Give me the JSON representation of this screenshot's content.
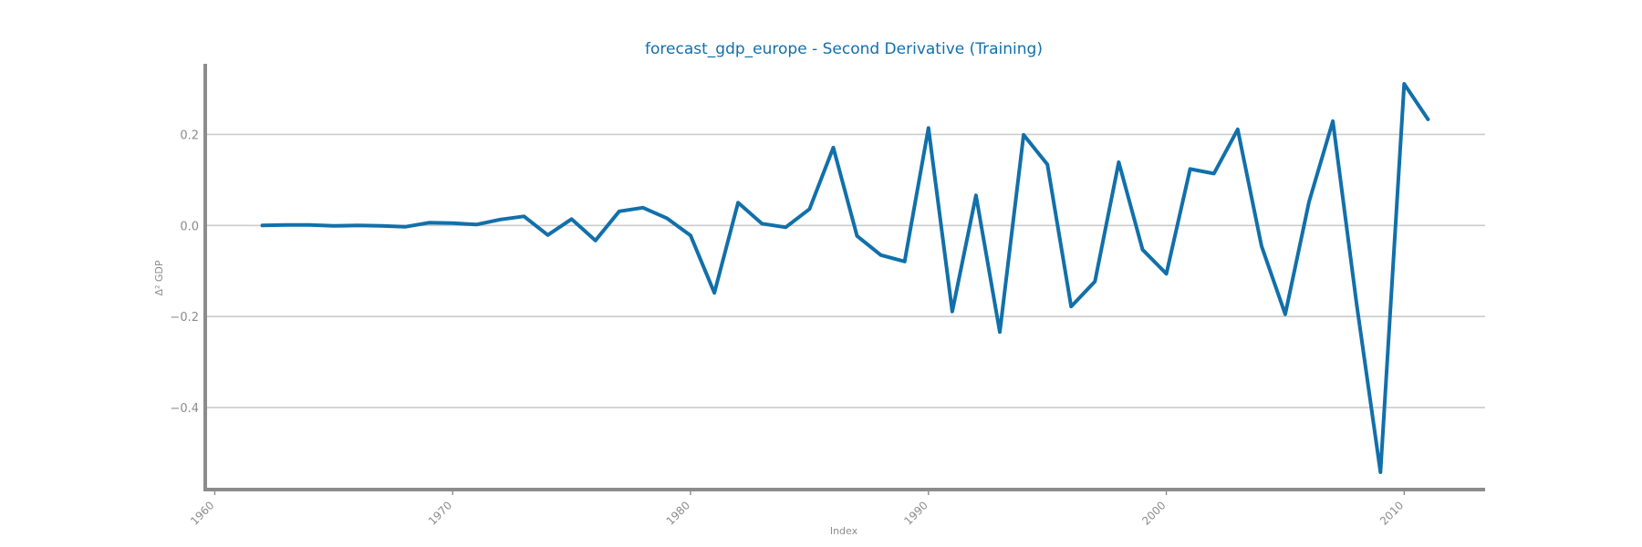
{
  "chart_data": {
    "type": "line",
    "title": "forecast_gdp_europe - Second Derivative (Training)",
    "xlabel": "Index",
    "ylabel": "Δ² GDP",
    "xlim": [
      1959.6,
      2013.4
    ],
    "ylim": [
      -0.58,
      0.355
    ],
    "x_ticks": [
      1960,
      1970,
      1980,
      1990,
      2000,
      2010
    ],
    "y_ticks": [
      0.2,
      0.0,
      -0.2,
      -0.4
    ],
    "y_tick_labels": [
      "0.2",
      "0.0",
      "−0.2",
      "−0.4"
    ],
    "grid": "horizontal",
    "color": "#1170aa",
    "series": [
      {
        "x": [
          1962,
          1963,
          1964,
          1965,
          1966,
          1967,
          1968,
          1969,
          1970,
          1971,
          1972,
          1973,
          1974,
          1975,
          1976,
          1977,
          1978,
          1979,
          1980,
          1981,
          1982,
          1983,
          1984,
          1985,
          1986,
          1987,
          1988,
          1989,
          1990,
          1991,
          1992,
          1993,
          1994,
          1995,
          1996,
          1997,
          1998,
          1999,
          2000,
          2001,
          2002,
          2003,
          2004,
          2005,
          2006,
          2007,
          2008,
          2009,
          2010,
          2011
        ],
        "values": [
          0.0,
          0.001,
          0.001,
          -0.001,
          0.0,
          -0.001,
          -0.003,
          0.006,
          0.005,
          0.002,
          0.013,
          0.02,
          -0.021,
          0.014,
          -0.033,
          0.031,
          0.039,
          0.016,
          -0.022,
          -0.148,
          0.05,
          0.004,
          -0.004,
          0.036,
          0.171,
          -0.023,
          -0.065,
          -0.079,
          0.214,
          -0.189,
          0.066,
          -0.234,
          0.199,
          0.134,
          -0.178,
          -0.123,
          0.139,
          -0.053,
          -0.106,
          0.124,
          0.114,
          0.211,
          -0.045,
          -0.195,
          0.052,
          0.229,
          -0.173,
          -0.542,
          0.311,
          0.233
        ]
      }
    ]
  }
}
